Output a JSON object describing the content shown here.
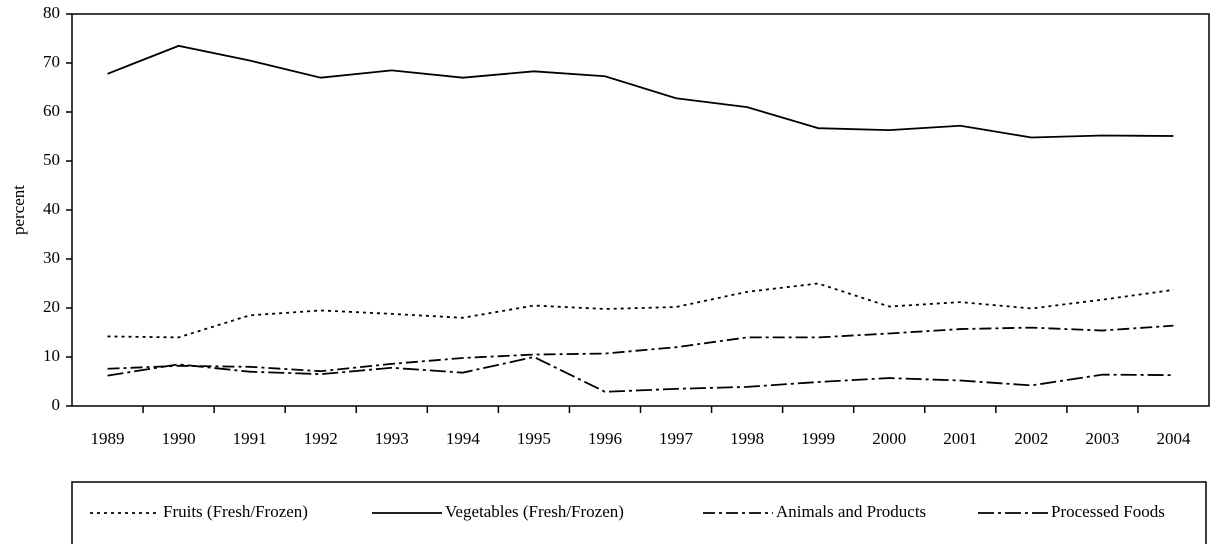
{
  "chart_data": {
    "type": "line",
    "y_label": "percent",
    "categories": [
      "1989",
      "1990",
      "1991",
      "1992",
      "1993",
      "1994",
      "1995",
      "1996",
      "1997",
      "1998",
      "1999",
      "2000",
      "2001",
      "2002",
      "2003",
      "2004"
    ],
    "series": [
      {
        "name": "Fruits (Fresh/Frozen)",
        "color": "#000000",
        "dash": "3,4",
        "values": [
          14.2,
          14,
          18.5,
          19.5,
          18.8,
          18,
          20.5,
          19.8,
          20.2,
          23.3,
          25,
          20.3,
          21.2,
          19.9,
          21.7,
          23.7
        ]
      },
      {
        "name": "Vegetables (Fresh/Frozen)",
        "color": "#000000",
        "dash": "none",
        "values": [
          67.8,
          73.5,
          70.5,
          67,
          68.5,
          67,
          68.3,
          67.3,
          62.8,
          61,
          56.7,
          56.3,
          57.2,
          54.8,
          55.2,
          55.1
        ]
      },
      {
        "name": "Animals and Products",
        "color": "#000000",
        "dash": "12,4,3,4",
        "values": [
          7.6,
          8.2,
          8,
          7.1,
          8.6,
          9.8,
          10.5,
          10.7,
          12,
          14,
          14,
          14.8,
          15.7,
          16,
          15.4,
          16.4
        ]
      },
      {
        "name": "Processed Foods",
        "color": "#000000",
        "dash": "16,4,3,4",
        "values": [
          6.2,
          8.5,
          7,
          6.5,
          7.8,
          6.8,
          10,
          2.9,
          3.5,
          3.9,
          4.9,
          5.7,
          5.2,
          4.2,
          6.4,
          6.3
        ]
      }
    ],
    "ylim": [
      0,
      80
    ],
    "yticks": [
      0,
      10,
      20,
      30,
      40,
      50,
      60,
      70,
      80
    ],
    "legend": "bottom"
  }
}
